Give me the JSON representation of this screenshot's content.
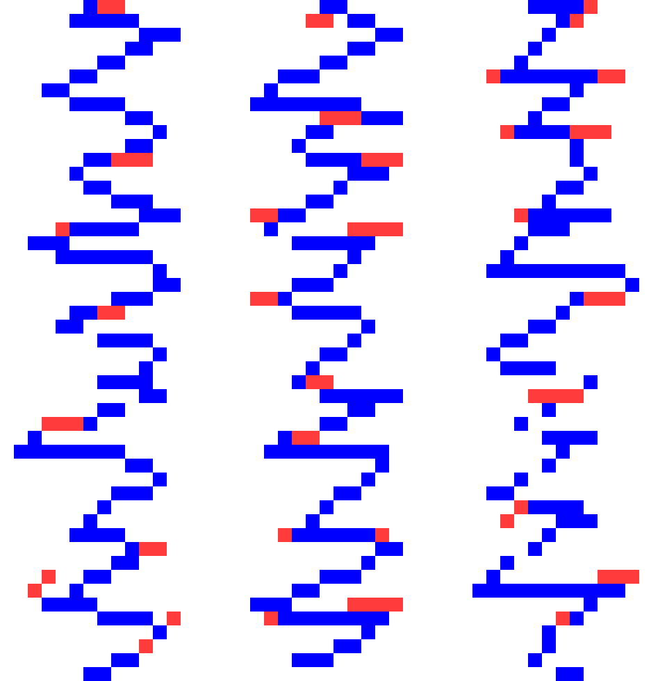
{
  "colors": {
    "background": "#ffffff",
    "path": "#0000ff",
    "marker": "#ff3b3b"
  },
  "grid": {
    "cols": 48,
    "rows": 48,
    "blue": [
      [
        [
          6,
          1
        ],
        [
          5,
          5
        ],
        [
          10,
          3
        ],
        [
          9,
          2
        ],
        [
          7,
          2
        ],
        [
          5,
          2
        ],
        [
          3,
          2
        ],
        [
          5,
          4
        ],
        [
          9,
          2
        ],
        [
          11,
          1
        ],
        [
          9,
          2
        ],
        [
          6,
          2
        ],
        [
          5,
          1
        ],
        [
          6,
          2
        ],
        [
          8,
          3
        ],
        [
          10,
          3
        ],
        [
          5,
          5
        ],
        [
          2,
          3
        ],
        [
          4,
          7
        ],
        [
          11,
          1
        ],
        [
          11,
          2
        ],
        [
          8,
          3
        ],
        [
          5,
          2
        ],
        [
          4,
          2
        ],
        [
          7,
          4
        ],
        [
          11,
          1
        ],
        [
          10,
          1
        ],
        [
          7,
          4
        ],
        [
          10,
          2
        ],
        [
          7,
          2
        ],
        [
          5,
          2
        ],
        [
          2,
          1
        ],
        [
          1,
          8
        ],
        [
          9,
          2
        ],
        [
          11,
          1
        ],
        [
          8,
          3
        ],
        [
          7,
          1
        ],
        [
          6,
          1
        ],
        [
          5,
          4
        ],
        [
          9,
          2
        ],
        [
          8,
          2
        ],
        [
          6,
          2
        ],
        [
          5,
          1
        ],
        [
          3,
          4
        ],
        [
          7,
          4
        ],
        [
          11,
          1
        ],
        [
          10,
          1
        ],
        [
          8,
          2
        ],
        [
          6,
          2
        ]
      ],
      [
        [
          23,
          2
        ],
        [
          25,
          2
        ],
        [
          27,
          2
        ],
        [
          25,
          2
        ],
        [
          23,
          2
        ],
        [
          20,
          3
        ],
        [
          19,
          1
        ],
        [
          18,
          8
        ],
        [
          26,
          3
        ],
        [
          22,
          2
        ],
        [
          21,
          1
        ],
        [
          22,
          4
        ],
        [
          25,
          3
        ],
        [
          24,
          1
        ],
        [
          22,
          2
        ],
        [
          20,
          2
        ],
        [
          19,
          1
        ],
        [
          21,
          6
        ],
        [
          25,
          1
        ],
        [
          24,
          1
        ],
        [
          21,
          3
        ],
        [
          20,
          1
        ],
        [
          21,
          5
        ],
        [
          26,
          1
        ],
        [
          25,
          1
        ],
        [
          23,
          2
        ],
        [
          22,
          1
        ],
        [
          21,
          1
        ],
        [
          23,
          6
        ],
        [
          25,
          2
        ],
        [
          23,
          2
        ],
        [
          20,
          1
        ],
        [
          19,
          9
        ],
        [
          27,
          1
        ],
        [
          26,
          1
        ],
        [
          24,
          2
        ],
        [
          23,
          1
        ],
        [
          22,
          1
        ],
        [
          21,
          6
        ],
        [
          27,
          2
        ],
        [
          26,
          1
        ],
        [
          23,
          3
        ],
        [
          21,
          2
        ],
        [
          18,
          3
        ],
        [
          20,
          8
        ],
        [
          26,
          1
        ],
        [
          24,
          2
        ],
        [
          21,
          3
        ]
      ],
      [
        [
          38,
          4
        ],
        [
          40,
          1
        ],
        [
          39,
          1
        ],
        [
          38,
          1
        ],
        [
          37,
          1
        ],
        [
          36,
          7
        ],
        [
          41,
          1
        ],
        [
          39,
          2
        ],
        [
          38,
          1
        ],
        [
          37,
          4
        ],
        [
          41,
          1
        ],
        [
          41,
          1
        ],
        [
          42,
          1
        ],
        [
          40,
          2
        ],
        [
          39,
          1
        ],
        [
          38,
          6
        ],
        [
          38,
          3
        ],
        [
          37,
          1
        ],
        [
          36,
          1
        ],
        [
          35,
          10
        ],
        [
          45,
          1
        ],
        [
          41,
          2
        ],
        [
          40,
          1
        ],
        [
          38,
          2
        ],
        [
          36,
          2
        ],
        [
          35,
          1
        ],
        [
          36,
          4
        ],
        [
          42,
          1
        ],
        [
          40,
          2
        ],
        [
          39,
          1
        ],
        [
          37,
          1
        ],
        [
          39,
          4
        ],
        [
          40,
          1
        ],
        [
          39,
          1
        ],
        [
          37,
          1
        ],
        [
          35,
          2
        ],
        [
          38,
          4
        ],
        [
          40,
          3
        ],
        [
          39,
          1
        ],
        [
          38,
          1
        ],
        [
          36,
          1
        ],
        [
          35,
          1
        ],
        [
          34,
          11
        ],
        [
          42,
          1
        ],
        [
          41,
          1
        ],
        [
          39,
          1
        ],
        [
          39,
          1
        ],
        [
          38,
          1
        ],
        [
          40,
          2
        ]
      ]
    ],
    "red": [
      [
        7,
        0,
        2
      ],
      [
        8,
        11,
        3
      ],
      [
        4,
        16,
        1
      ],
      [
        7,
        22,
        2
      ],
      [
        3,
        30,
        3
      ],
      [
        10,
        39,
        2
      ],
      [
        3,
        41,
        1
      ],
      [
        2,
        42,
        1
      ],
      [
        12,
        44,
        1
      ],
      [
        10,
        46,
        1
      ],
      [
        22,
        1,
        2
      ],
      [
        23,
        8,
        3
      ],
      [
        26,
        11,
        3
      ],
      [
        18,
        15,
        2
      ],
      [
        25,
        16,
        4
      ],
      [
        18,
        21,
        2
      ],
      [
        22,
        27,
        2
      ],
      [
        21,
        31,
        2
      ],
      [
        20,
        38,
        1
      ],
      [
        27,
        38,
        1
      ],
      [
        25,
        43,
        4
      ],
      [
        19,
        44,
        1
      ],
      [
        42,
        0,
        1
      ],
      [
        41,
        1,
        1
      ],
      [
        35,
        5,
        1
      ],
      [
        43,
        5,
        2
      ],
      [
        36,
        9,
        1
      ],
      [
        41,
        9,
        3
      ],
      [
        37,
        15,
        1
      ],
      [
        42,
        21,
        3
      ],
      [
        38,
        28,
        4
      ],
      [
        37,
        36,
        1
      ],
      [
        36,
        37,
        1
      ],
      [
        43,
        41,
        3
      ],
      [
        40,
        44,
        1
      ]
    ]
  }
}
